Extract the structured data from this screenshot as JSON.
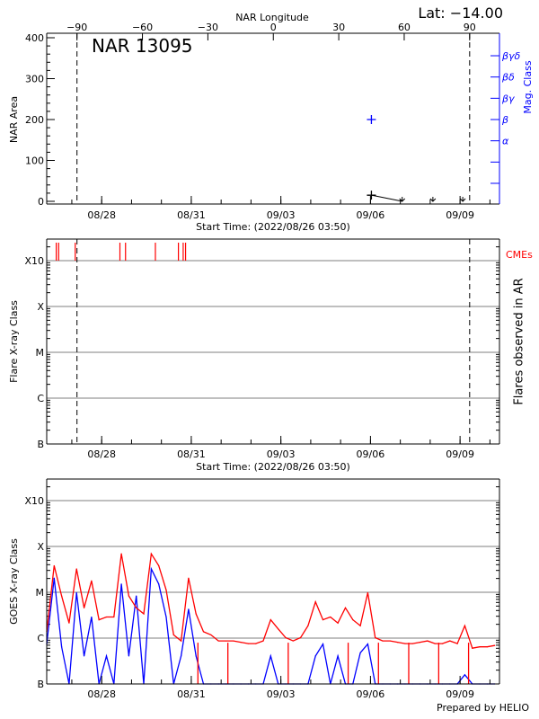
{
  "header": {
    "lat_label": "Lat: −14.00",
    "region_title": "NAR 13095",
    "footer": "Prepared by HELIO"
  },
  "colors": {
    "long_channel": "#ff0000",
    "short_channel": "#0000ff",
    "cme": "#ff0000",
    "mag_class": "#0000ff",
    "grid": "#999999"
  },
  "chart_data": [
    {
      "type": "scatter",
      "panel": "top",
      "xlabel": "Start Time: (2022/08/26 03:50)",
      "xlim": [
        "2022/08/26 03:50",
        "2022/09/10 07:40"
      ],
      "x_ticks": [
        {
          "label": "08/28",
          "t": "2022/08/28 00:00"
        },
        {
          "label": "08/31",
          "t": "2022/08/31 00:00"
        },
        {
          "label": "09/03",
          "t": "2022/09/03 00:00"
        },
        {
          "label": "09/06",
          "t": "2022/09/06 00:00"
        },
        {
          "label": "09/09",
          "t": "2022/09/09 00:00"
        }
      ],
      "top_axis_label": "NAR Longitude",
      "top_axis_ticks": [
        "-90",
        "-60",
        "-30",
        "0",
        "30",
        "60",
        "90"
      ],
      "limb_longitudes": [
        -90,
        90
      ],
      "ylabel": "NAR Area",
      "ylim": [
        0,
        400
      ],
      "y_ticks": [
        "0",
        "100",
        "200",
        "300",
        "400"
      ],
      "right_axis_label": "Mag. Class",
      "mag_classes": [
        {
          "label": "α",
          "area_equiv": 148
        },
        {
          "label": "β",
          "area_equiv": 200
        },
        {
          "label": "βγ",
          "area_equiv": 252
        },
        {
          "label": "βδ",
          "area_equiv": 304
        },
        {
          "label": "βγδ",
          "area_equiv": 356
        }
      ],
      "area_points": [
        {
          "t": "2022/09/06 00:45",
          "value": 15,
          "marker": "plus"
        },
        {
          "t": "2022/09/07 01:30",
          "value": 0,
          "marker": "arrow-down"
        },
        {
          "t": "2022/09/08 02:10",
          "value": 0,
          "marker": "arrow-down"
        },
        {
          "t": "2022/09/09 02:10",
          "value": 0,
          "marker": "arrow-down"
        }
      ],
      "mag_class_points": [
        {
          "t": "2022/09/06 00:45",
          "class": "β"
        }
      ]
    },
    {
      "type": "scatter",
      "panel": "middle",
      "xlabel": "Start Time: (2022/08/26 03:50)",
      "ylabel": "Flare X-ray Class",
      "right_axis_label": "Flares observed in AR",
      "y_ticks": [
        "B",
        "C",
        "M",
        "X",
        "X10"
      ],
      "grid": true,
      "cme_label": "CMEs",
      "cme_times": [
        "2022/08/26 11:30",
        "2022/08/26 13:25",
        "2022/08/27 02:45",
        "2022/08/28 14:40",
        "2022/08/28 19:10",
        "2022/08/29 19:10",
        "2022/08/30 13:40",
        "2022/08/30 17:30",
        "2022/08/30 19:25"
      ],
      "flares": []
    },
    {
      "type": "line",
      "panel": "bottom",
      "ylabel": "GOES X-ray Class",
      "y_ticks": [
        "B",
        "C",
        "M",
        "X",
        "X10"
      ],
      "y_log_flux_range": [
        -7,
        -2.47
      ],
      "grid": true,
      "start": "2022/08/26 03:50",
      "cadence_hours": 6,
      "series": [
        {
          "channel": "long",
          "log_flux": [
            -5.86,
            -4.42,
            -5.08,
            -5.67,
            -4.49,
            -5.34,
            -4.75,
            -5.6,
            -5.54,
            -5.54,
            -4.16,
            -5.08,
            -5.34,
            -5.47,
            -4.16,
            -4.42,
            -4.95,
            -5.93,
            -6.06,
            -4.69,
            -5.47,
            -5.86,
            -5.93,
            -6.06,
            -6.06,
            -6.06,
            -6.09,
            -6.12,
            -6.12,
            -6.06,
            -5.6,
            -5.8,
            -5.99,
            -6.06,
            -5.99,
            -5.73,
            -5.21,
            -5.6,
            -5.54,
            -5.67,
            -5.34,
            -5.6,
            -5.73,
            -5.01,
            -5.99,
            -6.06,
            -6.06,
            -6.09,
            -6.12,
            -6.12,
            -6.09,
            -6.06,
            -6.12,
            -6.12,
            -6.06,
            -6.12,
            -5.73,
            -6.22,
            -6.19,
            -6.19,
            -6.16
          ]
        },
        {
          "channel": "short",
          "log_flux": [
            -6.13,
            -4.69,
            -6.19,
            -7,
            -5.01,
            -6.39,
            -5.54,
            -7,
            -6.39,
            -7,
            -4.82,
            -6.39,
            -5.08,
            -7,
            -4.49,
            -4.82,
            -5.54,
            -7,
            -6.39,
            -5.37,
            -6.39,
            -7,
            -7,
            -7,
            -7,
            -7,
            -7,
            -7,
            -7,
            -7,
            -6.39,
            -7,
            -7,
            -7,
            -7,
            -7,
            -6.39,
            -6.13,
            -7,
            -6.39,
            -7,
            -7,
            -6.32,
            -6.13,
            -7,
            -7,
            -7,
            -7,
            -7,
            -7,
            -7,
            -7,
            -7,
            -7,
            -7,
            -7,
            -6.8,
            -7,
            -7,
            -7,
            -7
          ]
        }
      ],
      "long_dropouts": [
        "2022/08/31 05:20",
        "2022/09/01 05:25",
        "2022/09/03 05:55",
        "2022/09/05 06:05",
        "2022/09/06 06:25",
        "2022/09/07 06:45",
        "2022/09/08 06:50",
        "2022/09/09 06:50"
      ]
    }
  ]
}
